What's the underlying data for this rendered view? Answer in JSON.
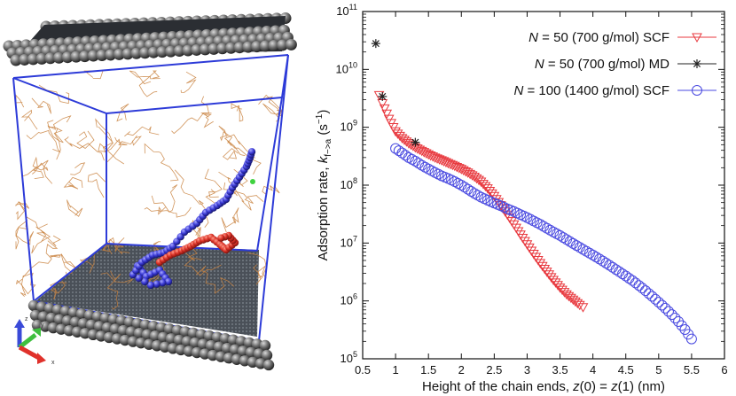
{
  "chart_data": {
    "type": "scatter",
    "yscale": "log",
    "xlabel_parts": [
      "Height of the chain ends, ",
      "z",
      "(0) = ",
      "z",
      "(1) (nm)"
    ],
    "ylabel_parts": [
      "Adsorption rate, ",
      "k",
      "f−>a",
      " (s",
      "−1",
      ")"
    ],
    "xlim": [
      0.5,
      6
    ],
    "ylim_exp": [
      5,
      11
    ],
    "xticks": [
      0.5,
      1,
      1.5,
      2,
      2.5,
      3,
      3.5,
      4,
      4.5,
      5,
      5.5,
      6
    ],
    "xtick_labels": [
      "0.5",
      "1",
      "1.5",
      "2",
      "2.5",
      "3",
      "3.5",
      "4",
      "4.5",
      "5",
      "5.5",
      "6"
    ],
    "yticks_exp": [
      5,
      6,
      7,
      8,
      9,
      10,
      11
    ],
    "ytick_base": "10",
    "ytick_exponents": [
      "5",
      "6",
      "7",
      "8",
      "9",
      "10",
      "11"
    ],
    "legend_position": "top-right",
    "series": [
      {
        "id": "n50-scf",
        "legend_parts": [
          "N",
          " = 50 (700 g/mol) SCF"
        ],
        "marker": "triangle-down",
        "color": "#e8393f",
        "points": [
          [
            0.75,
            3600000000.0
          ],
          [
            0.8,
            2600000000.0
          ],
          [
            0.9,
            1400000000.0
          ],
          [
            1.0,
            850000000.0
          ],
          [
            1.1,
            650000000.0
          ],
          [
            1.2,
            530000000.0
          ],
          [
            1.3,
            450000000.0
          ],
          [
            1.4,
            390000000.0
          ],
          [
            1.5,
            340000000.0
          ],
          [
            1.6,
            300000000.0
          ],
          [
            1.7,
            270000000.0
          ],
          [
            1.8,
            240000000.0
          ],
          [
            1.9,
            215000000.0
          ],
          [
            2.0,
            190000000.0
          ],
          [
            2.1,
            165000000.0
          ],
          [
            2.2,
            140000000.0
          ],
          [
            2.3,
            115000000.0
          ],
          [
            2.4,
            88000000.0
          ],
          [
            2.5,
            65000000.0
          ],
          [
            2.6,
            45000000.0
          ],
          [
            2.7,
            31000000.0
          ],
          [
            2.8,
            21000000.0
          ],
          [
            2.9,
            14000000.0
          ],
          [
            3.0,
            9500000.0
          ],
          [
            3.1,
            6500000.0
          ],
          [
            3.2,
            4500000.0
          ],
          [
            3.3,
            3200000.0
          ],
          [
            3.4,
            2300000.0
          ],
          [
            3.5,
            1700000.0
          ],
          [
            3.6,
            1300000.0
          ],
          [
            3.7,
            1050000.0
          ],
          [
            3.8,
            850000.0
          ],
          [
            3.85,
            780000.0
          ]
        ]
      },
      {
        "id": "n50-md",
        "legend_parts": [
          "N",
          " = 50 (700 g/mol) MD"
        ],
        "marker": "star",
        "color": "#222222",
        "points": [
          [
            0.7,
            28000000000.0
          ],
          [
            0.8,
            3400000000.0
          ],
          [
            1.3,
            550000000.0
          ]
        ]
      },
      {
        "id": "n100-scf",
        "legend_parts": [
          "N",
          " = 100 (1400 g/mol) SCF"
        ],
        "marker": "circle",
        "color": "#4a4ae0",
        "points": [
          [
            1.0,
            430000000.0
          ],
          [
            1.1,
            360000000.0
          ],
          [
            1.2,
            300000000.0
          ],
          [
            1.3,
            260000000.0
          ],
          [
            1.4,
            220000000.0
          ],
          [
            1.5,
            190000000.0
          ],
          [
            1.6,
            165000000.0
          ],
          [
            1.7,
            145000000.0
          ],
          [
            1.8,
            130000000.0
          ],
          [
            1.9,
            115000000.0
          ],
          [
            2.0,
            100000000.0
          ],
          [
            2.1,
            85000000.0
          ],
          [
            2.2,
            72000000.0
          ],
          [
            2.3,
            62000000.0
          ],
          [
            2.4,
            55000000.0
          ],
          [
            2.5,
            49000000.0
          ],
          [
            2.6,
            44000000.0
          ],
          [
            2.7,
            39000000.0
          ],
          [
            2.8,
            35000000.0
          ],
          [
            2.9,
            31000000.0
          ],
          [
            3.0,
            27500000.0
          ],
          [
            3.1,
            24000000.0
          ],
          [
            3.2,
            21000000.0
          ],
          [
            3.3,
            18000000.0
          ],
          [
            3.4,
            15500000.0
          ],
          [
            3.5,
            13500000.0
          ],
          [
            3.6,
            11500000.0
          ],
          [
            3.7,
            9800000.0
          ],
          [
            3.8,
            8400000.0
          ],
          [
            3.9,
            7200000.0
          ],
          [
            4.0,
            6200000.0
          ],
          [
            4.1,
            5300000.0
          ],
          [
            4.2,
            4500000.0
          ],
          [
            4.3,
            3800000.0
          ],
          [
            4.4,
            3200000.0
          ],
          [
            4.5,
            2700000.0
          ],
          [
            4.6,
            2250000.0
          ],
          [
            4.7,
            1850000.0
          ],
          [
            4.8,
            1500000.0
          ],
          [
            4.9,
            1200000.0
          ],
          [
            5.0,
            950000.0
          ],
          [
            5.1,
            750000.0
          ],
          [
            5.2,
            580000.0
          ],
          [
            5.3,
            440000.0
          ],
          [
            5.4,
            320000.0
          ],
          [
            5.5,
            220000.0
          ]
        ]
      }
    ]
  },
  "render": {
    "axes_letters": {
      "z": "z",
      "y": "y",
      "x": "x"
    },
    "colors": {
      "chain_red": "#d93025",
      "chain_blue": "#3b3bd6",
      "box_blue": "#2d3bd8",
      "matrix_orange": "#c9823f",
      "wall_grey": "#6e6e6e",
      "ground_grey": "#454b52"
    }
  }
}
